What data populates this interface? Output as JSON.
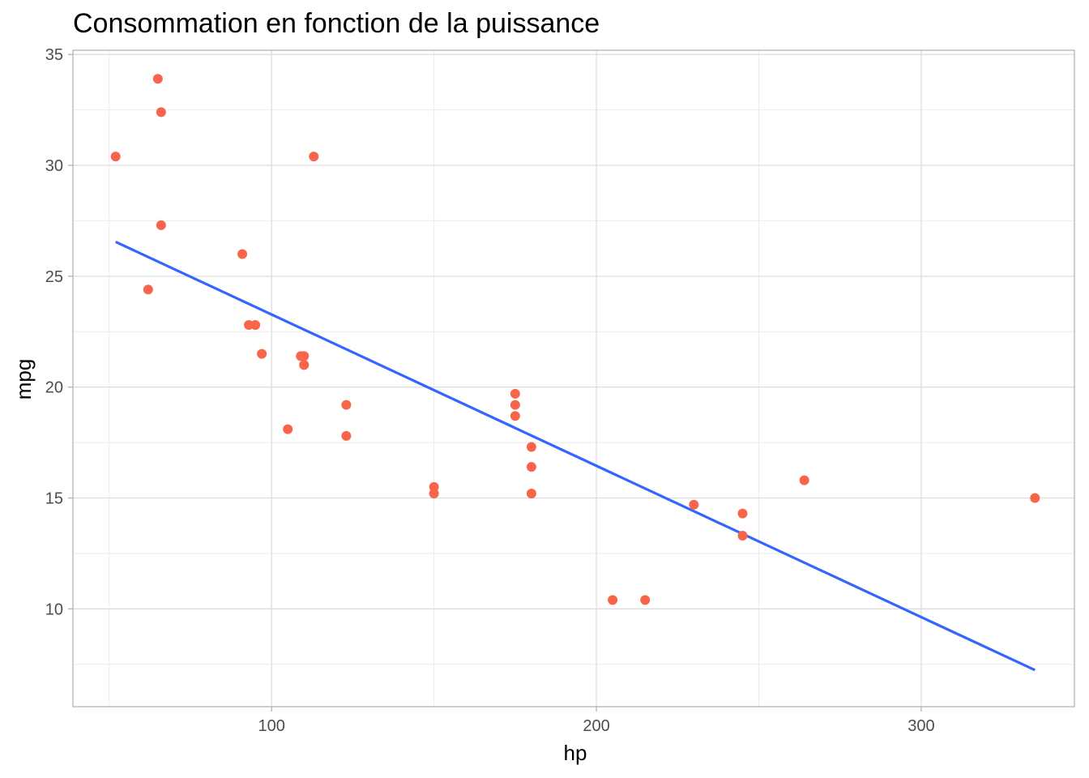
{
  "chart_data": {
    "type": "scatter",
    "title": "Consommation en fonction de la puissance",
    "xlabel": "hp",
    "ylabel": "mpg",
    "xlim": [
      38.85,
      347.15
    ],
    "ylim": [
      5.59,
      35.19
    ],
    "x_ticks": [
      100,
      200,
      300
    ],
    "x_minor_ticks": [
      50,
      150,
      250
    ],
    "y_ticks": [
      10,
      15,
      20,
      25,
      30,
      35
    ],
    "y_minor_ticks": [
      7.5,
      12.5,
      17.5,
      22.5,
      27.5,
      32.5
    ],
    "grid": true,
    "legend": "none",
    "point_color": "#F8654A",
    "line_color": "#3366FF",
    "series": [
      {
        "x": [
          110,
          110,
          93,
          110,
          175,
          105,
          245,
          62,
          95,
          123,
          123,
          180,
          180,
          180,
          205,
          215,
          230,
          66,
          52,
          65,
          97,
          150,
          150,
          245,
          175,
          66,
          91,
          113,
          264,
          175,
          335,
          109
        ],
        "y": [
          21.0,
          21.0,
          22.8,
          21.4,
          18.7,
          18.1,
          14.3,
          24.4,
          22.8,
          19.2,
          17.8,
          16.4,
          17.3,
          15.2,
          10.4,
          10.4,
          14.7,
          32.4,
          30.4,
          33.9,
          21.5,
          15.5,
          15.2,
          13.3,
          19.2,
          27.3,
          26.0,
          30.4,
          15.8,
          19.7,
          15.0,
          21.4
        ]
      }
    ],
    "trend_line": {
      "x": [
        52,
        335
      ],
      "y": [
        26.55,
        7.24
      ]
    }
  }
}
